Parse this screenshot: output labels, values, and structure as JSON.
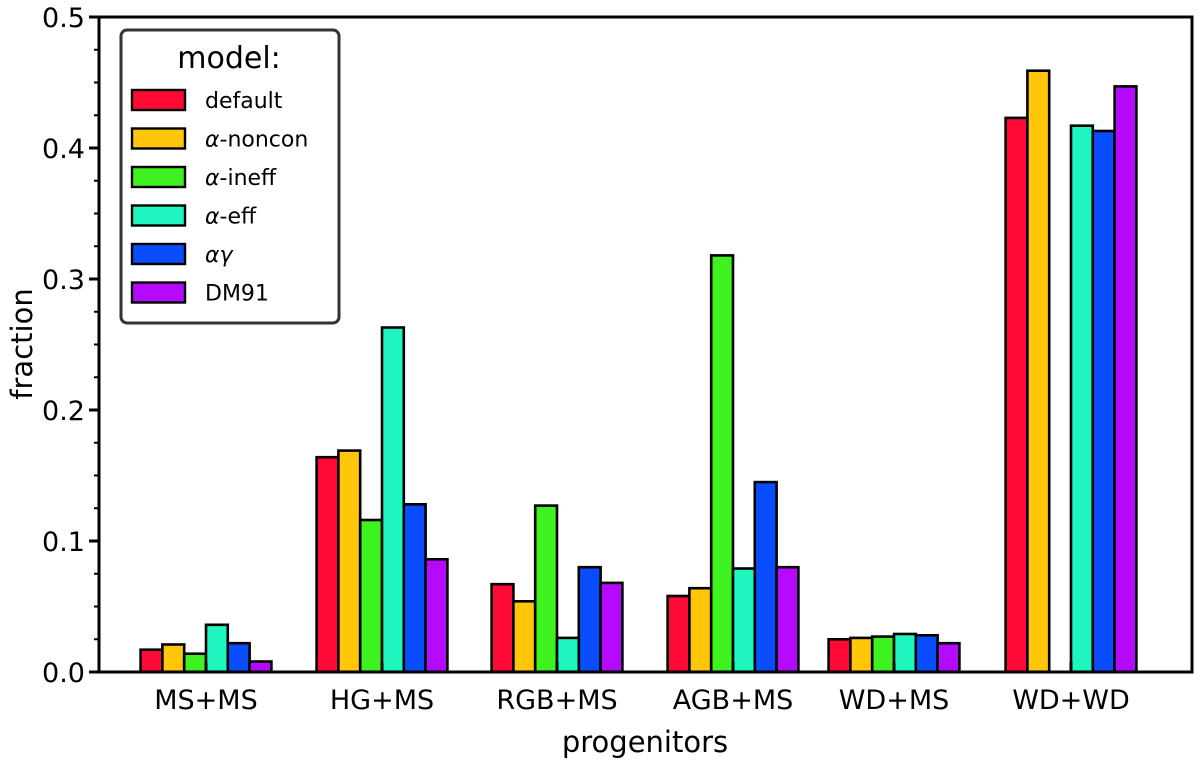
{
  "chart_data": {
    "type": "bar",
    "title": "",
    "xlabel": "progenitors",
    "ylabel": "fraction",
    "ylim": [
      0,
      0.5
    ],
    "yticks": [
      "0.0",
      "0.1",
      "0.2",
      "0.3",
      "0.4",
      "0.5"
    ],
    "grid": false,
    "legend_position": "top-left",
    "legend_title": "model:",
    "categories": [
      "MS+MS",
      "HG+MS",
      "RGB+MS",
      "AGB+MS",
      "WD+MS",
      "WD+WD"
    ],
    "series": [
      {
        "name": "default",
        "label_prefix": "",
        "label_main": "default",
        "color": "#ff0a35",
        "values": [
          0.017,
          0.164,
          0.067,
          0.058,
          0.025,
          0.423
        ]
      },
      {
        "name": "α-noncon",
        "label_prefix": "α",
        "label_main": "-noncon",
        "color": "#ffc60a",
        "values": [
          0.021,
          0.169,
          0.054,
          0.064,
          0.026,
          0.459
        ]
      },
      {
        "name": "α-ineff",
        "label_prefix": "α",
        "label_main": "-ineff",
        "color": "#3df21f",
        "values": [
          0.014,
          0.116,
          0.127,
          0.318,
          0.027,
          0.0
        ]
      },
      {
        "name": "α-eff",
        "label_prefix": "α",
        "label_main": "-eff",
        "color": "#1ff5bf",
        "values": [
          0.036,
          0.263,
          0.026,
          0.079,
          0.029,
          0.417
        ]
      },
      {
        "name": "αγ",
        "label_prefix": "αγ",
        "label_main": "",
        "color": "#0a4dff",
        "values": [
          0.022,
          0.128,
          0.08,
          0.145,
          0.028,
          0.413
        ]
      },
      {
        "name": "DM91",
        "label_prefix": "",
        "label_main": "DM91",
        "color": "#b50aff",
        "values": [
          0.008,
          0.086,
          0.068,
          0.08,
          0.022,
          0.447
        ]
      }
    ]
  }
}
